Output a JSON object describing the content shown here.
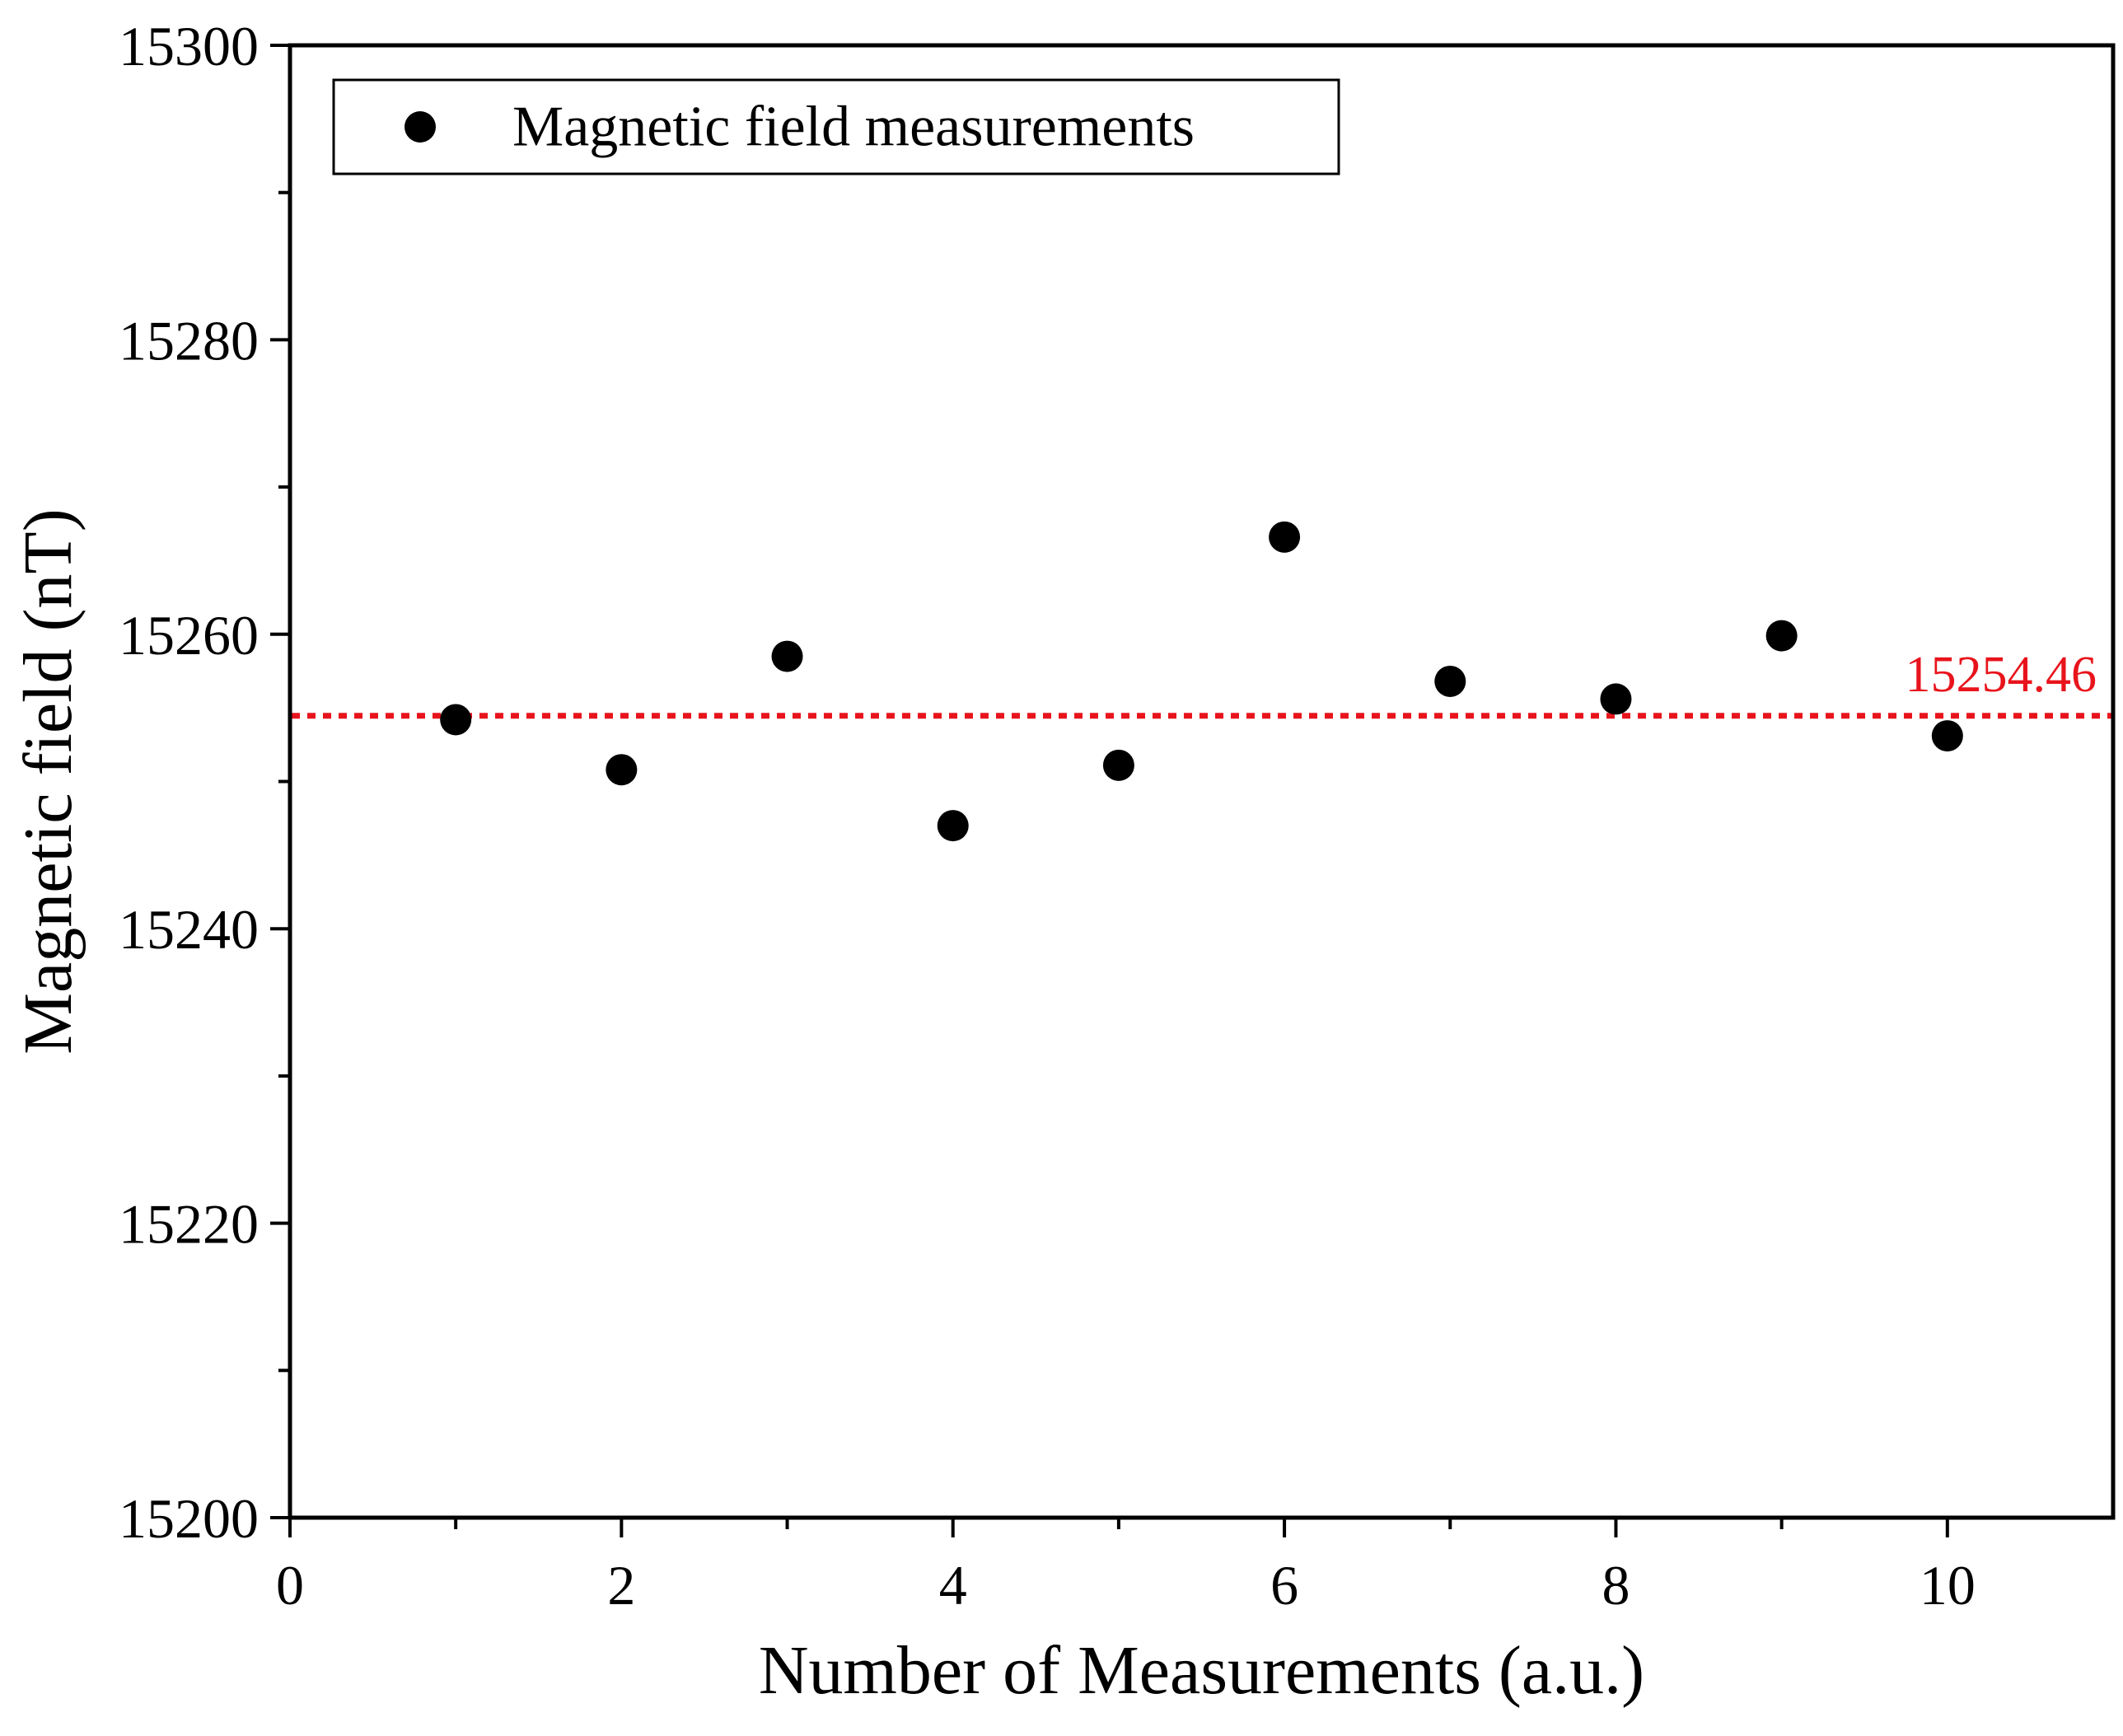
{
  "chart_data": {
    "type": "scatter",
    "title": "",
    "xlabel": "Number of Measurements (a.u.)",
    "ylabel": "Magnetic field (nT)",
    "xlim": [
      0,
      11
    ],
    "ylim": [
      15200,
      15300
    ],
    "x_ticks": [
      0,
      2,
      4,
      6,
      8,
      10
    ],
    "x_tick_labels": [
      "0",
      "2",
      "4",
      "6",
      "8",
      "10"
    ],
    "x_minor_ticks": [
      1,
      3,
      5,
      7,
      9
    ],
    "y_ticks": [
      15200,
      15220,
      15240,
      15260,
      15280,
      15300
    ],
    "y_tick_labels": [
      "15200",
      "15220",
      "15240",
      "15260",
      "15280",
      "15300"
    ],
    "y_minor_ticks": [
      15210,
      15230,
      15250,
      15270,
      15290
    ],
    "grid": false,
    "legend": {
      "position": "top-left",
      "entries": [
        "Magnetic field measurements"
      ]
    },
    "series": [
      {
        "name": "Magnetic field measurements",
        "marker": "circle",
        "color": "#000000",
        "x": [
          1,
          2,
          3,
          4,
          5,
          6,
          7,
          8,
          9,
          10
        ],
        "y": [
          15254.2,
          15250.8,
          15258.5,
          15247.0,
          15251.1,
          15266.6,
          15256.8,
          15255.6,
          15259.9,
          15253.1
        ]
      }
    ],
    "reference_line": {
      "value": 15254.46,
      "label": "15254.46",
      "style": "dotted",
      "color": "#e8141c"
    }
  }
}
